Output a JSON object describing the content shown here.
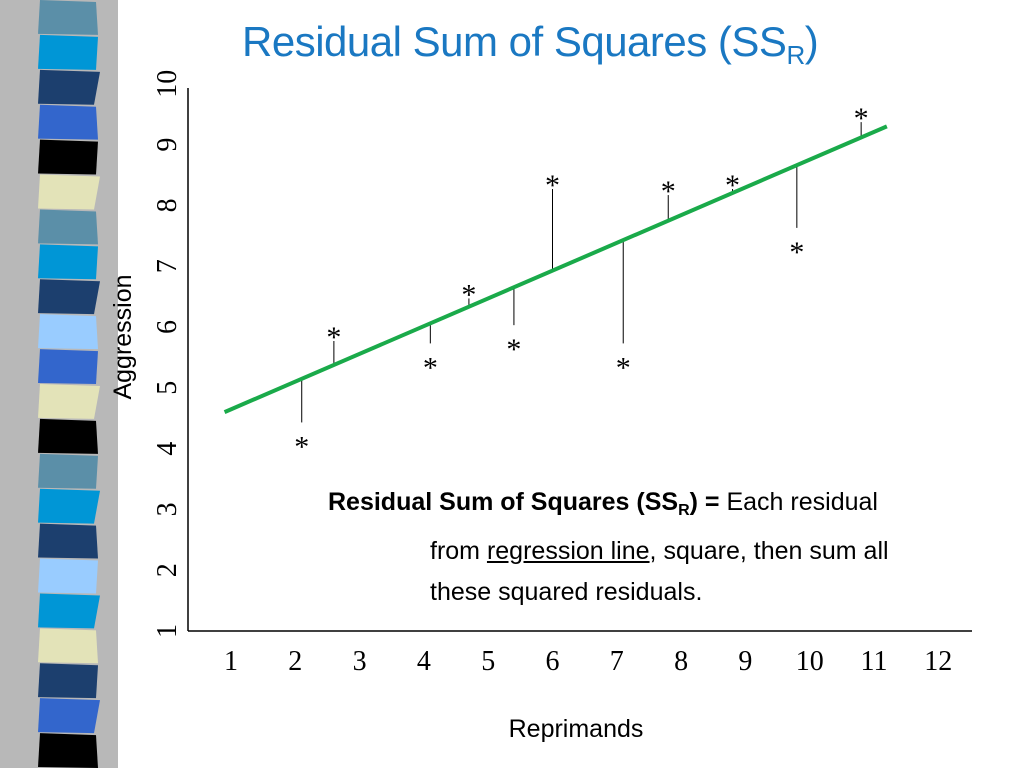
{
  "title": {
    "main": "Residual Sum of Squares (SS",
    "sub": "R",
    "close": ")"
  },
  "annotation": {
    "bold_main": "Residual Sum of Squares (SS",
    "bold_sub": "R",
    "bold_tail": ") =",
    "line1_text": " Each residual",
    "line2_prefix": "from ",
    "line2_link": "regression line",
    "line2_suffix": ", square, then sum all",
    "line3": "these squared residuals."
  },
  "stripe_colors": [
    "#5b8fa8",
    "#0096d6",
    "#1c3f6e",
    "#3366cc",
    "#000000",
    "#e3e3b8",
    "#5b8fa8",
    "#0096d6",
    "#1c3f6e",
    "#99ccff",
    "#3366cc",
    "#e3e3b8",
    "#000000",
    "#5b8fa8",
    "#0096d6",
    "#1c3f6e",
    "#99ccff",
    "#0096d6",
    "#e3e3b8",
    "#1c3f6e",
    "#3366cc",
    "#000000"
  ],
  "colors": {
    "title": "#1a78c2",
    "regression_line": "#1aaa4a",
    "axis": "#000000"
  },
  "chart_data": {
    "type": "scatter",
    "xlabel": "Reprimands",
    "ylabel": "Aggression",
    "x_ticks": [
      "1",
      "2",
      "3",
      "4",
      "5",
      "6",
      "7",
      "8",
      "9",
      "10",
      "11",
      "12"
    ],
    "y_ticks": [
      "1",
      "2",
      "3",
      "4",
      "5",
      "6",
      "7",
      "8",
      "9",
      "10"
    ],
    "xlim": [
      1,
      12
    ],
    "ylim": [
      1,
      10
    ],
    "marker": "*",
    "points": [
      {
        "x": 2.1,
        "y": 4.2
      },
      {
        "x": 2.6,
        "y": 6.0
      },
      {
        "x": 4.1,
        "y": 5.5
      },
      {
        "x": 4.7,
        "y": 6.7
      },
      {
        "x": 5.4,
        "y": 5.8
      },
      {
        "x": 6.0,
        "y": 8.5
      },
      {
        "x": 7.1,
        "y": 5.5
      },
      {
        "x": 7.8,
        "y": 8.4
      },
      {
        "x": 8.8,
        "y": 8.5
      },
      {
        "x": 9.8,
        "y": 7.4
      },
      {
        "x": 10.8,
        "y": 9.6
      }
    ],
    "regression_line": {
      "x": [
        0.9,
        11.2
      ],
      "y": [
        4.6,
        9.3
      ]
    }
  }
}
